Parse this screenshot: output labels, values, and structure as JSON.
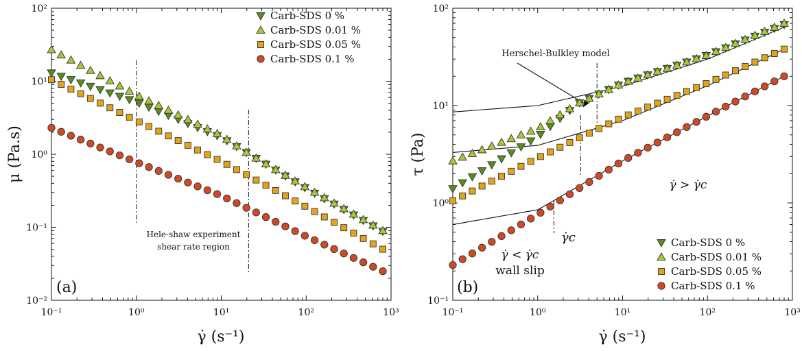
{
  "colors": {
    "green": "#5a8e1c",
    "light_green": "#a6c93a",
    "orange": "#e2a419",
    "red": "#cf4a24",
    "edge": "#333333"
  },
  "chart_data": [
    {
      "type": "scatter",
      "panel_label": "(a)",
      "xlabel": "γ̇ (s⁻¹)",
      "ylabel": "μ (Pa.s)",
      "xscale": "log",
      "yscale": "log",
      "xlim": [
        0.1,
        1000
      ],
      "ylim": [
        0.01,
        100
      ],
      "x_ticks": [
        "10⁻¹",
        "10⁰",
        "10¹",
        "10²",
        "10³"
      ],
      "y_ticks": [
        "10⁻²",
        "10⁻¹",
        "10⁰",
        "10¹",
        "10²"
      ],
      "legend_position": "top-right",
      "series": [
        {
          "name": "Carb-SDS 0 %",
          "marker": "triangle-down",
          "color": "#5a8e1c",
          "points": [
            [
              0.1,
              13
            ],
            [
              1,
              5.2
            ],
            [
              10,
              1.7
            ],
            [
              20,
              1.05
            ],
            [
              100,
              0.34
            ],
            [
              800,
              0.088
            ]
          ]
        },
        {
          "name": "Carb-SDS 0.01 %",
          "marker": "triangle-up",
          "color": "#a6c93a",
          "points": [
            [
              0.1,
              27
            ],
            [
              1,
              6.5
            ],
            [
              10,
              1.8
            ],
            [
              20,
              1.05
            ],
            [
              100,
              0.35
            ],
            [
              800,
              0.09
            ]
          ]
        },
        {
          "name": "Carb-SDS 0.05 %",
          "marker": "square",
          "color": "#e2a419",
          "points": [
            [
              0.1,
              10.5
            ],
            [
              1,
              2.9
            ],
            [
              10,
              0.8
            ],
            [
              100,
              0.19
            ],
            [
              800,
              0.05
            ]
          ]
        },
        {
          "name": "Carb-SDS 0.1 %",
          "marker": "circle",
          "color": "#cf4a24",
          "points": [
            [
              0.1,
              2.3
            ],
            [
              1,
              0.78
            ],
            [
              10,
              0.27
            ],
            [
              100,
              0.075
            ],
            [
              800,
              0.025
            ]
          ]
        }
      ],
      "annotations": {
        "region_text": [
          "Hele-shaw experiment",
          "shear rate region"
        ],
        "region_x": [
          1,
          21
        ]
      }
    },
    {
      "type": "scatter",
      "panel_label": "(b)",
      "xlabel": "γ̇ (s⁻¹)",
      "ylabel": "τ (Pa)",
      "xscale": "log",
      "yscale": "log",
      "xlim": [
        0.1,
        1000
      ],
      "ylim": [
        0.1,
        100
      ],
      "x_ticks": [
        "10⁻¹",
        "10⁰",
        "10¹",
        "10²",
        "10³"
      ],
      "y_ticks": [
        "10⁻¹",
        "10⁰",
        "10¹",
        "10²"
      ],
      "legend_position": "bottom-right",
      "series": [
        {
          "name": "Carb-SDS 0 %",
          "marker": "triangle-down",
          "color": "#5a8e1c",
          "points": [
            [
              0.1,
              1.4
            ],
            [
              1,
              4.8
            ],
            [
              3,
              10.5
            ],
            [
              10,
              17
            ],
            [
              100,
              33
            ],
            [
              800,
              68
            ]
          ]
        },
        {
          "name": "Carb-SDS 0.01 %",
          "marker": "triangle-up",
          "color": "#a6c93a",
          "points": [
            [
              0.1,
              2.7
            ],
            [
              1,
              5.8
            ],
            [
              3,
              10.5
            ],
            [
              10,
              17
            ],
            [
              100,
              33
            ],
            [
              800,
              70
            ]
          ]
        },
        {
          "name": "Carb-SDS 0.05 %",
          "marker": "square",
          "color": "#e2a419",
          "points": [
            [
              0.1,
              1.05
            ],
            [
              1,
              2.9
            ],
            [
              10,
              7.6
            ],
            [
              100,
              17
            ],
            [
              800,
              38
            ]
          ]
        },
        {
          "name": "Carb-SDS 0.1 %",
          "marker": "circle",
          "color": "#cf4a24",
          "points": [
            [
              0.1,
              0.23
            ],
            [
              1,
              0.76
            ],
            [
              10,
              2.7
            ],
            [
              100,
              7.8
            ],
            [
              800,
              20
            ]
          ]
        }
      ],
      "fits": [
        {
          "points": [
            [
              0.1,
              8.6
            ],
            [
              1,
              10
            ],
            [
              10,
              15.8
            ],
            [
              100,
              30
            ],
            [
              800,
              64
            ]
          ]
        },
        {
          "points": [
            [
              0.1,
              3.3
            ],
            [
              1,
              3.9
            ],
            [
              10,
              7
            ],
            [
              100,
              16
            ],
            [
              800,
              38
            ]
          ]
        },
        {
          "points": [
            [
              0.1,
              0.6
            ],
            [
              1,
              0.85
            ],
            [
              10,
              2.7
            ],
            [
              100,
              7.8
            ],
            [
              800,
              20
            ]
          ]
        }
      ],
      "annotations": {
        "model_label": "Herschel-Bulkley model",
        "model_arrow_to": [
          1,
          9.6
        ],
        "critical_x": [
          1.55,
          3.2,
          5
        ],
        "gamma_c": "γ̇c",
        "below_text": "γ̇ < γ̇c",
        "wall_slip": "wall slip",
        "above_text": "γ̇ > γ̇c"
      }
    }
  ]
}
